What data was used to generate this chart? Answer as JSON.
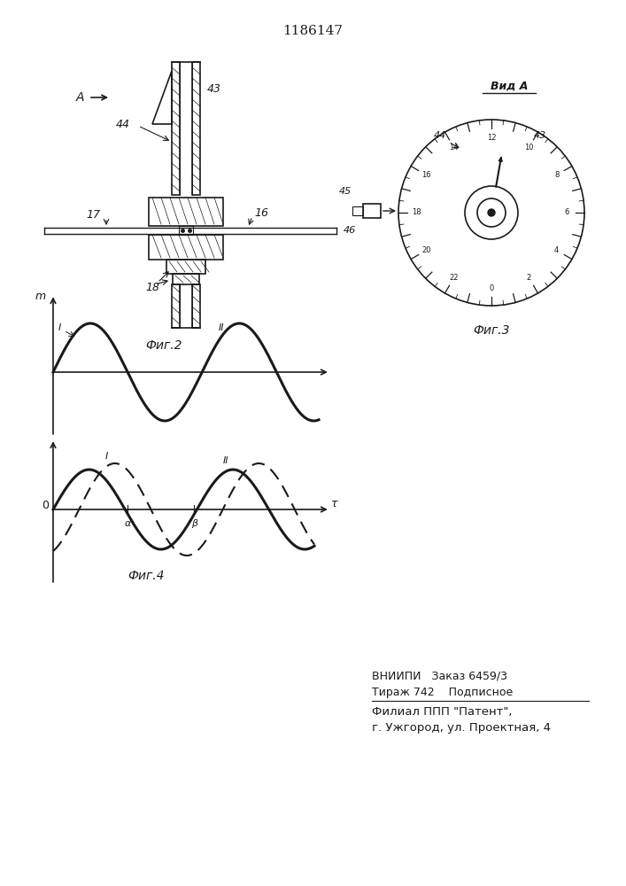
{
  "title": "1186147",
  "fig2_label": "Фиг.2",
  "fig3_label": "Фиг.3",
  "fig4_label": "Фиг.4",
  "vid_a_label": "Вид А",
  "bottom_text_line1": "ВНИИПИ   Заказ 6459/3",
  "bottom_text_line2": "Тираж 742    Подписное",
  "bottom_text_line3": "Филиал ППП \"Патент\",",
  "bottom_text_line4": "г. Ужгород, ул. Проектная, 4",
  "bg_color": "#ffffff",
  "line_color": "#1a1a1a"
}
